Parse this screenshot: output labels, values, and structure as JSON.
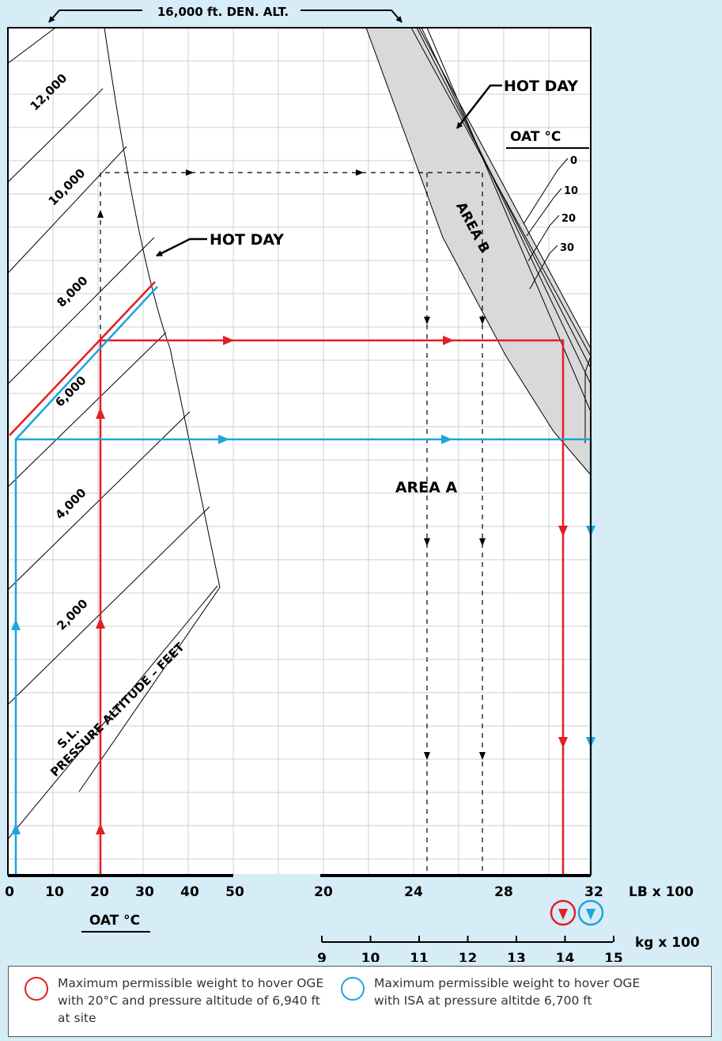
{
  "chart_data": {
    "type": "line",
    "title": "16,000 ft. DEN. ALT.",
    "left_panel": {
      "xlabel": "OAT °C",
      "x_ticks": [
        "0",
        "10",
        "20",
        "30",
        "40",
        "50"
      ],
      "ylabel": "PRESSURE ALTITUDE – FEET",
      "altitude_lines": [
        "S.L.",
        "2,000",
        "4,000",
        "6,000",
        "8,000",
        "10,000",
        "12,000"
      ],
      "hot_day_label": "HOT DAY"
    },
    "right_panel": {
      "xlabel": "LB x 100",
      "x_ticks": [
        "20",
        "24",
        "28",
        "32"
      ],
      "kg_label": "kg x 100",
      "kg_ticks": [
        "9",
        "10",
        "11",
        "12",
        "13",
        "14",
        "15"
      ],
      "hot_day_label": "HOT DAY",
      "oat_label": "OAT °C",
      "oat_values": [
        "0",
        "10",
        "20",
        "30"
      ],
      "area_a": "AREA A",
      "area_b": "AREA B"
    },
    "series": [
      {
        "color": "#e31e24",
        "oat_c": 20,
        "pressure_altitude_ft": 6940,
        "weight_kg": 1400
      },
      {
        "color": "#1fa3dc",
        "oat_c": 0,
        "pressure_altitude_ft": 6700,
        "weight_kg": 1450
      }
    ]
  },
  "legend": [
    {
      "color": "#e31e24",
      "text": "Maximum permissible weight to hover OGE with 20°C and pressure altitude of 6,940 ft at site"
    },
    {
      "color": "#1fa3dc",
      "text": "Maximum permissible weight to hover OGE with ISA at pressure altitde 6,700 ft"
    }
  ]
}
